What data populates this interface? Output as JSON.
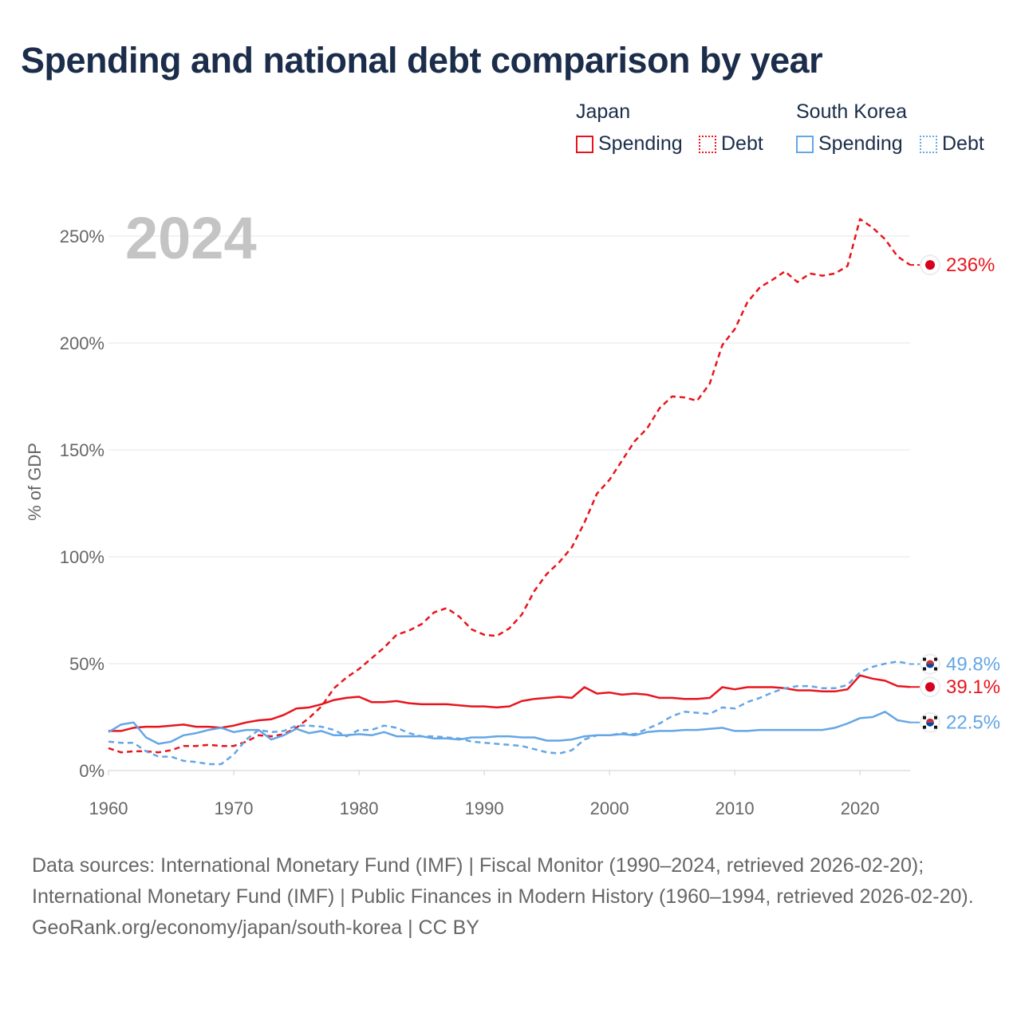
{
  "title": "Spending and national debt comparison by year",
  "legend": {
    "japan": {
      "label": "Japan",
      "spending": "Spending",
      "debt": "Debt"
    },
    "korea": {
      "label": "South Korea",
      "spending": "Spending",
      "debt": "Debt"
    }
  },
  "colors": {
    "japan": "#e8141c",
    "korea": "#64a6e6",
    "text": "#1b2d4a",
    "muted": "#666666",
    "year": "#c4c4c4"
  },
  "footer": {
    "sources": "Data sources: International Monetary Fund (IMF) | Fiscal Monitor (1990–2024, retrieved 2026-02-20); International Monetary Fund (IMF) | Public Finances in Modern History (1960–1994, retrieved 2026-02-20).",
    "credit": "GeoRank.org/economy/japan/south-korea | CC BY"
  },
  "chart_data": {
    "type": "line",
    "year_label": "2024",
    "ylabel": "% of GDP",
    "xlabel": "",
    "xlim": [
      1960,
      2024
    ],
    "ylim": [
      0,
      260
    ],
    "x_ticks": [
      1960,
      1970,
      1980,
      1990,
      2000,
      2010,
      2020
    ],
    "y_ticks": [
      0,
      50,
      100,
      150,
      200,
      250
    ],
    "y_tick_labels": [
      "0%",
      "50%",
      "100%",
      "150%",
      "200%",
      "250%"
    ],
    "grid": true,
    "legend_position": "top-right",
    "x": [
      1960,
      1961,
      1962,
      1963,
      1964,
      1965,
      1966,
      1967,
      1968,
      1969,
      1970,
      1971,
      1972,
      1973,
      1974,
      1975,
      1976,
      1977,
      1978,
      1979,
      1980,
      1981,
      1982,
      1983,
      1984,
      1985,
      1986,
      1987,
      1988,
      1989,
      1990,
      1991,
      1992,
      1993,
      1994,
      1995,
      1996,
      1997,
      1998,
      1999,
      2000,
      2001,
      2002,
      2003,
      2004,
      2005,
      2006,
      2007,
      2008,
      2009,
      2010,
      2011,
      2012,
      2013,
      2014,
      2015,
      2016,
      2017,
      2018,
      2019,
      2020,
      2021,
      2022,
      2023,
      2024
    ],
    "series": [
      {
        "name": "Japan Debt",
        "country": "japan",
        "style": "dashed",
        "end_label": "236%",
        "values": [
          10.5,
          8.5,
          9,
          9,
          8.5,
          9.5,
          11.5,
          11.5,
          12,
          11.5,
          11.5,
          13.5,
          16.5,
          16,
          17,
          20,
          24.5,
          30,
          38.5,
          43.5,
          47.5,
          52.5,
          57.5,
          63.5,
          65.5,
          68.5,
          74,
          76,
          72,
          66,
          63.5,
          63,
          66.5,
          73,
          84,
          92,
          97.5,
          104.5,
          116,
          129.5,
          136,
          145,
          154,
          160,
          169.5,
          175,
          174.5,
          173,
          181,
          199,
          206.5,
          219,
          226,
          229.5,
          233.5,
          228.5,
          232.5,
          231.5,
          232.5,
          236,
          258,
          254,
          248.5,
          240.5,
          236.5
        ]
      },
      {
        "name": "Japan Spending",
        "country": "japan",
        "style": "solid",
        "end_label": "39.1%",
        "values": [
          18.5,
          18.5,
          20,
          20.5,
          20.5,
          21,
          21.5,
          20.5,
          20.5,
          20,
          21,
          22.5,
          23.5,
          24,
          26,
          29,
          29.5,
          31,
          33,
          34,
          34.5,
          32,
          32,
          32.5,
          31.5,
          31,
          31,
          31,
          30.5,
          30,
          30,
          29.5,
          30,
          32.5,
          33.5,
          34,
          34.5,
          34,
          39,
          36,
          36.5,
          35.5,
          36,
          35.5,
          34,
          34,
          33.5,
          33.5,
          34,
          39,
          38,
          39,
          39,
          39,
          38.5,
          37.5,
          37.5,
          37,
          37,
          38,
          44.5,
          43,
          42,
          39.5,
          39.1
        ]
      },
      {
        "name": "South Korea Debt",
        "country": "korea",
        "style": "dashed",
        "end_label": "49.8%",
        "values": [
          13.5,
          13,
          13,
          9,
          6.5,
          6.5,
          4.5,
          4,
          3,
          3,
          7.5,
          14.5,
          19,
          18,
          18.5,
          21,
          21,
          20.5,
          19,
          16,
          19,
          19,
          21,
          20,
          17.5,
          16,
          16,
          15.5,
          15,
          13.5,
          13,
          12.5,
          12,
          11.5,
          10,
          8.5,
          8,
          9.5,
          14.5,
          16.5,
          16.5,
          17.5,
          17,
          19.5,
          22,
          25.5,
          27.5,
          27,
          26.5,
          29.5,
          29,
          32,
          34,
          36.5,
          38.5,
          39.5,
          39.5,
          38.5,
          38.5,
          40,
          46,
          48.5,
          50,
          51,
          49.8
        ]
      },
      {
        "name": "South Korea Spending",
        "country": "korea",
        "style": "solid",
        "end_label": "22.5%",
        "values": [
          18,
          21.5,
          22.5,
          15.5,
          12.5,
          13.5,
          16.5,
          17.5,
          19,
          20,
          18,
          19,
          19,
          14.5,
          16.5,
          19.5,
          17.5,
          18.5,
          16.5,
          16.5,
          17,
          16.5,
          18,
          16,
          16,
          16,
          15,
          15,
          14.5,
          15.5,
          15.5,
          16,
          16,
          15.5,
          15.5,
          14,
          14,
          14.5,
          16,
          16.5,
          16.5,
          17,
          16.5,
          18,
          18.5,
          18.5,
          19,
          19,
          19.5,
          20,
          18.5,
          18.5,
          19,
          19,
          19,
          19,
          19,
          19,
          20,
          22,
          24.5,
          25,
          27.5,
          23.5,
          22.5
        ]
      }
    ]
  }
}
